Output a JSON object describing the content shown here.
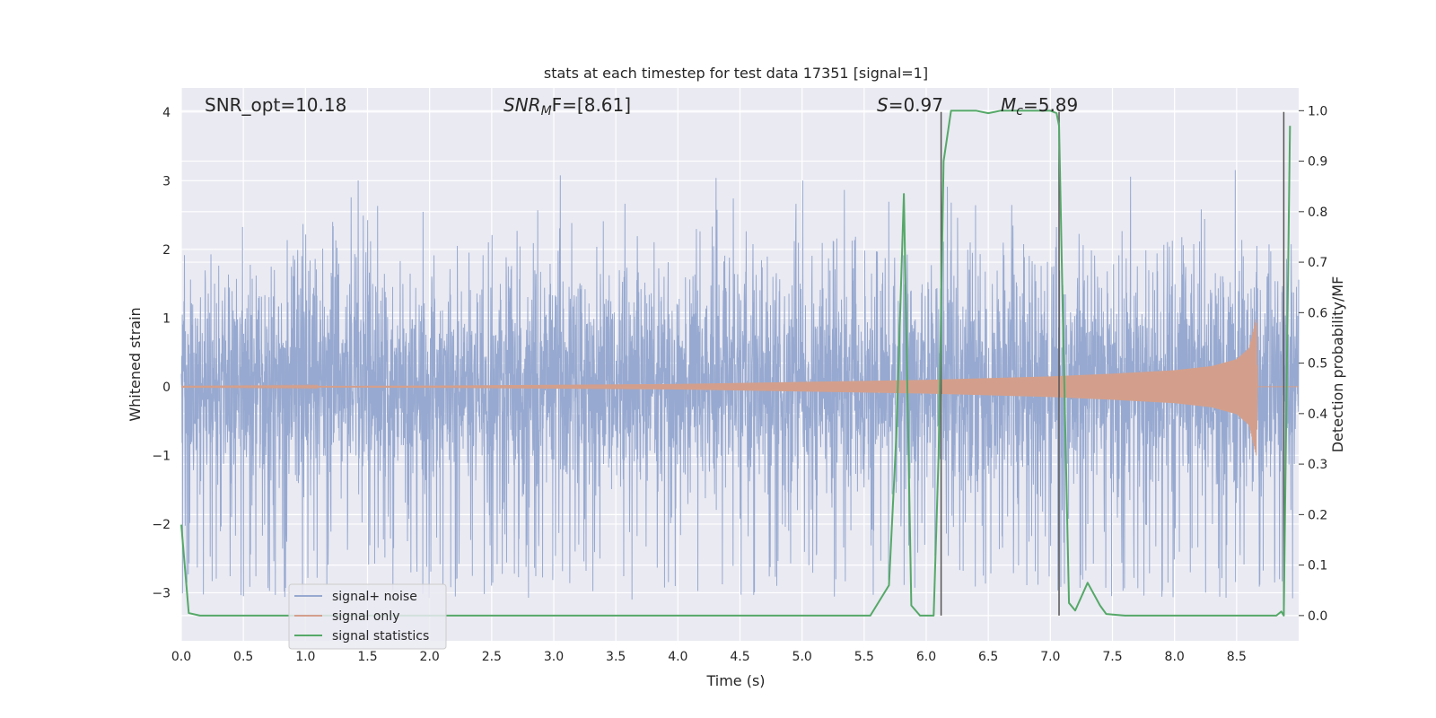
{
  "chart_data": {
    "type": "line",
    "title": "stats at each timestep for test data 17351 [signal=1]",
    "xlabel": "Time (s)",
    "ylabel_left": "Whitened strain",
    "ylabel_right": "Detection probability/MF",
    "xlim": [
      0.0,
      9.0
    ],
    "ylim_left": [
      -3.7,
      4.35
    ],
    "ylim_right": [
      -0.05,
      1.045
    ],
    "x_ticks": [
      "0.0",
      "0.5",
      "1.0",
      "1.5",
      "2.0",
      "2.5",
      "3.0",
      "3.5",
      "4.0",
      "4.5",
      "5.0",
      "5.5",
      "6.0",
      "6.5",
      "7.0",
      "7.5",
      "8.0",
      "8.5"
    ],
    "y_ticks_left": [
      "−3",
      "−2",
      "−1",
      "0",
      "1",
      "2",
      "3",
      "4"
    ],
    "y_ticks_right": [
      "0.0",
      "0.1",
      "0.2",
      "0.3",
      "0.4",
      "0.5",
      "0.6",
      "0.7",
      "0.8",
      "0.9",
      "1.0"
    ],
    "annotations": {
      "snr_opt": "SNR_opt=10.18",
      "snr_mf_main": "SNR",
      "snr_mf_sub": "M",
      "snr_mf_rest": "F=[8.61]",
      "s_main": "S",
      "s_rest": "=0.97",
      "mc_main": "M",
      "mc_sub": "c",
      "mc_rest": "=5.89"
    },
    "legend": {
      "position": "lower-left",
      "entries": [
        "signal+ noise",
        "signal only",
        "signal statistics"
      ]
    },
    "colors": {
      "noise": "#97a9d0",
      "signal": "#d39f8c",
      "stats": "#55a868",
      "vlines": "#555555",
      "background": "#eaeaf2",
      "grid": "#ffffff"
    },
    "series": [
      {
        "name": "signal+ noise",
        "axis": "left",
        "noise_sigma": 0.75,
        "peak_range": [
          1.3,
          3.35
        ],
        "trough_range": [
          -3.1,
          -1.3
        ],
        "t_range": [
          0.0,
          9.0
        ]
      },
      {
        "name": "signal only",
        "axis": "left",
        "envelope": [
          [
            0.0,
            0.005
          ],
          [
            2.0,
            0.015
          ],
          [
            4.0,
            0.04
          ],
          [
            5.0,
            0.07
          ],
          [
            6.0,
            0.1
          ],
          [
            7.0,
            0.15
          ],
          [
            7.5,
            0.19
          ],
          [
            8.0,
            0.24
          ],
          [
            8.3,
            0.3
          ],
          [
            8.5,
            0.4
          ],
          [
            8.6,
            0.56
          ],
          [
            8.66,
            1.02
          ],
          [
            8.67,
            0.0
          ],
          [
            9.0,
            0.0
          ]
        ]
      },
      {
        "name": "signal statistics",
        "axis": "right",
        "x": [
          0.0,
          0.06,
          0.15,
          0.5,
          1.0,
          2.0,
          3.0,
          4.0,
          5.0,
          5.55,
          5.7,
          5.76,
          5.82,
          5.88,
          5.95,
          6.06,
          6.1,
          6.14,
          6.2,
          6.4,
          6.5,
          6.6,
          6.8,
          7.0,
          7.05,
          7.07,
          7.1,
          7.15,
          7.2,
          7.3,
          7.4,
          7.45,
          7.6,
          8.0,
          8.5,
          8.82,
          8.86,
          8.88,
          8.9,
          8.93
        ],
        "y": [
          0.18,
          0.005,
          0.0,
          0.0,
          0.0,
          0.0,
          0.0,
          0.0,
          0.0,
          0.0,
          0.06,
          0.36,
          0.835,
          0.02,
          0.0,
          0.0,
          0.32,
          0.9,
          1.0,
          1.0,
          0.995,
          1.0,
          1.0,
          1.0,
          0.995,
          0.97,
          0.6,
          0.025,
          0.01,
          0.065,
          0.02,
          0.003,
          0.0,
          0.0,
          0.0,
          0.0,
          0.008,
          0.0,
          0.4,
          0.97
        ]
      }
    ],
    "vertical_lines_x": [
      6.12,
      7.07,
      8.88
    ],
    "vertical_lines_top": 4.0
  }
}
